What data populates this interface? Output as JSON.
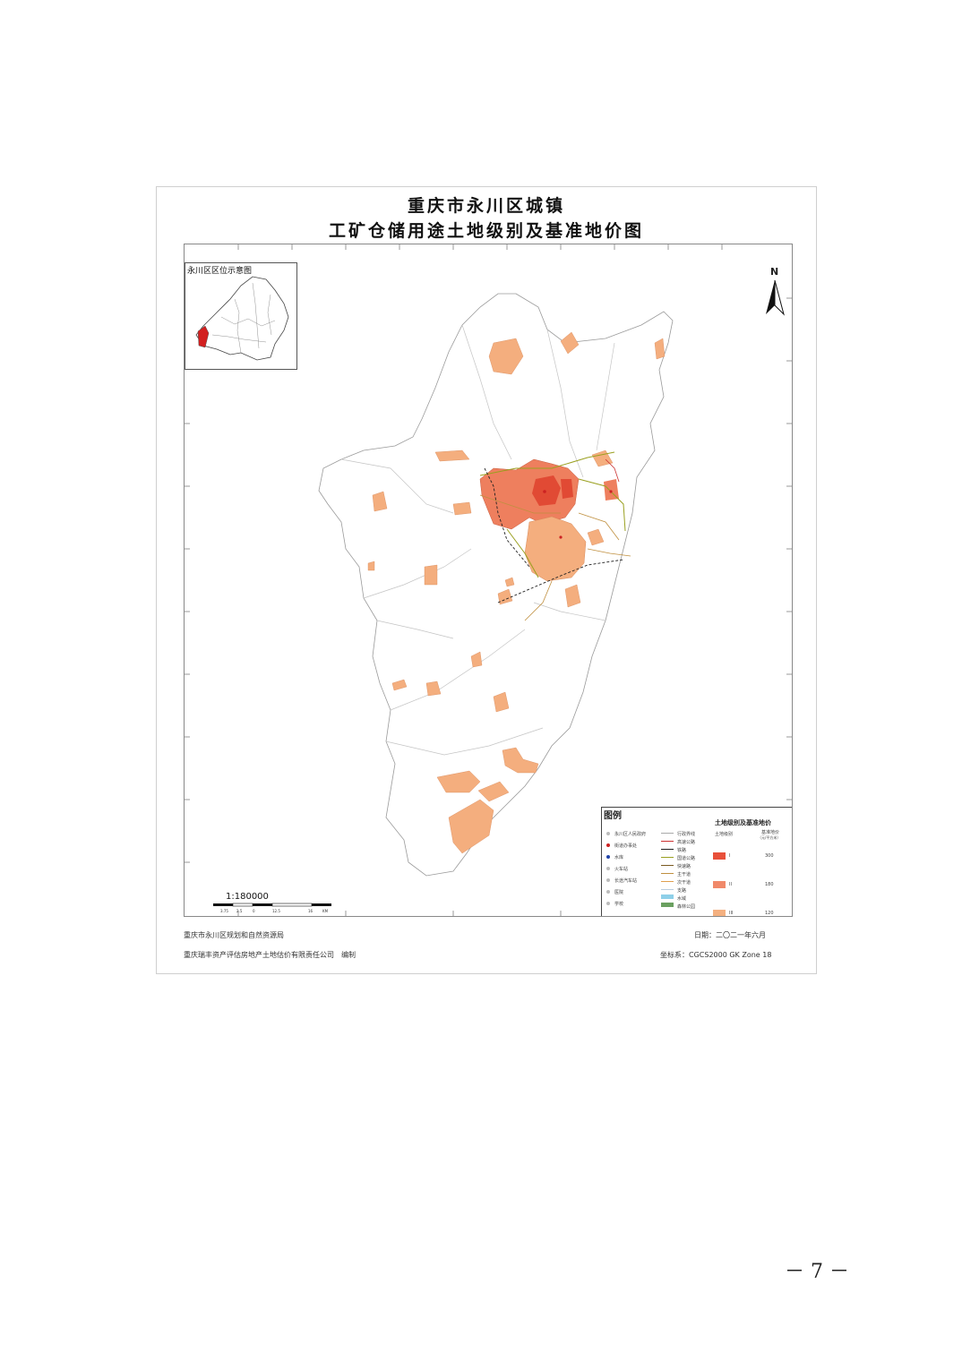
{
  "title": {
    "line1": "重庆市永川区城镇",
    "line2": "工矿仓储用途土地级别及基准地价图"
  },
  "inset": {
    "title": "永川区区位示意图"
  },
  "north_label": "N",
  "scale": {
    "ratio": "1:180000",
    "ticks": [
      "3.75",
      "2.5",
      "0",
      "12.5",
      "16",
      "KM"
    ]
  },
  "legend": {
    "title": "图例",
    "right_title": "土地级别及基准地价",
    "col_level": "土地级别",
    "col_price": "基准地价",
    "col_price_sub": "（元/平方米）",
    "symbols": [
      {
        "label": "永川区人民政府",
        "color": "#bbbbbb"
      },
      {
        "label": "街道办事处",
        "color": "#cc2222"
      },
      {
        "label": "水库",
        "color": "#2244aa"
      },
      {
        "label": "火车站",
        "color": "#bbbbbb"
      },
      {
        "label": "长途汽车站",
        "color": "#bbbbbb"
      },
      {
        "label": "医院",
        "color": "#bbbbbb"
      },
      {
        "label": "学校",
        "color": "#bbbbbb"
      }
    ],
    "lines": [
      {
        "label": "行政界线",
        "color": "#aaaaaa"
      },
      {
        "label": "高速公路",
        "color": "#cc3333"
      },
      {
        "label": "铁路",
        "color": "#222222"
      },
      {
        "label": "国道公路",
        "color": "#9aa020"
      },
      {
        "label": "快速路",
        "color": "#7a5a20"
      },
      {
        "label": "主干道",
        "color": "#c09040"
      },
      {
        "label": "次干道",
        "color": "#e0a050"
      },
      {
        "label": "支路",
        "color": "#bbccdd"
      },
      {
        "label": "水域",
        "color": "#8ed0e8"
      },
      {
        "label": "森林公园",
        "color": "#6aa060"
      }
    ],
    "levels": [
      {
        "level": "I",
        "price": "300",
        "color": "#e8503a"
      },
      {
        "level": "II",
        "price": "180",
        "color": "#f0896a"
      },
      {
        "level": "III",
        "price": "120",
        "color": "#f4b080"
      }
    ]
  },
  "footer": {
    "left1": "重庆市永川区规划和自然资源局",
    "left2": "重庆瑞丰资产评估房地产土地估价有限责任公司　编制",
    "right1": "日期：二〇二一年六月",
    "right2": "坐标系：CGCS2000 GK Zone 18"
  },
  "page_number": "－ 7 －"
}
